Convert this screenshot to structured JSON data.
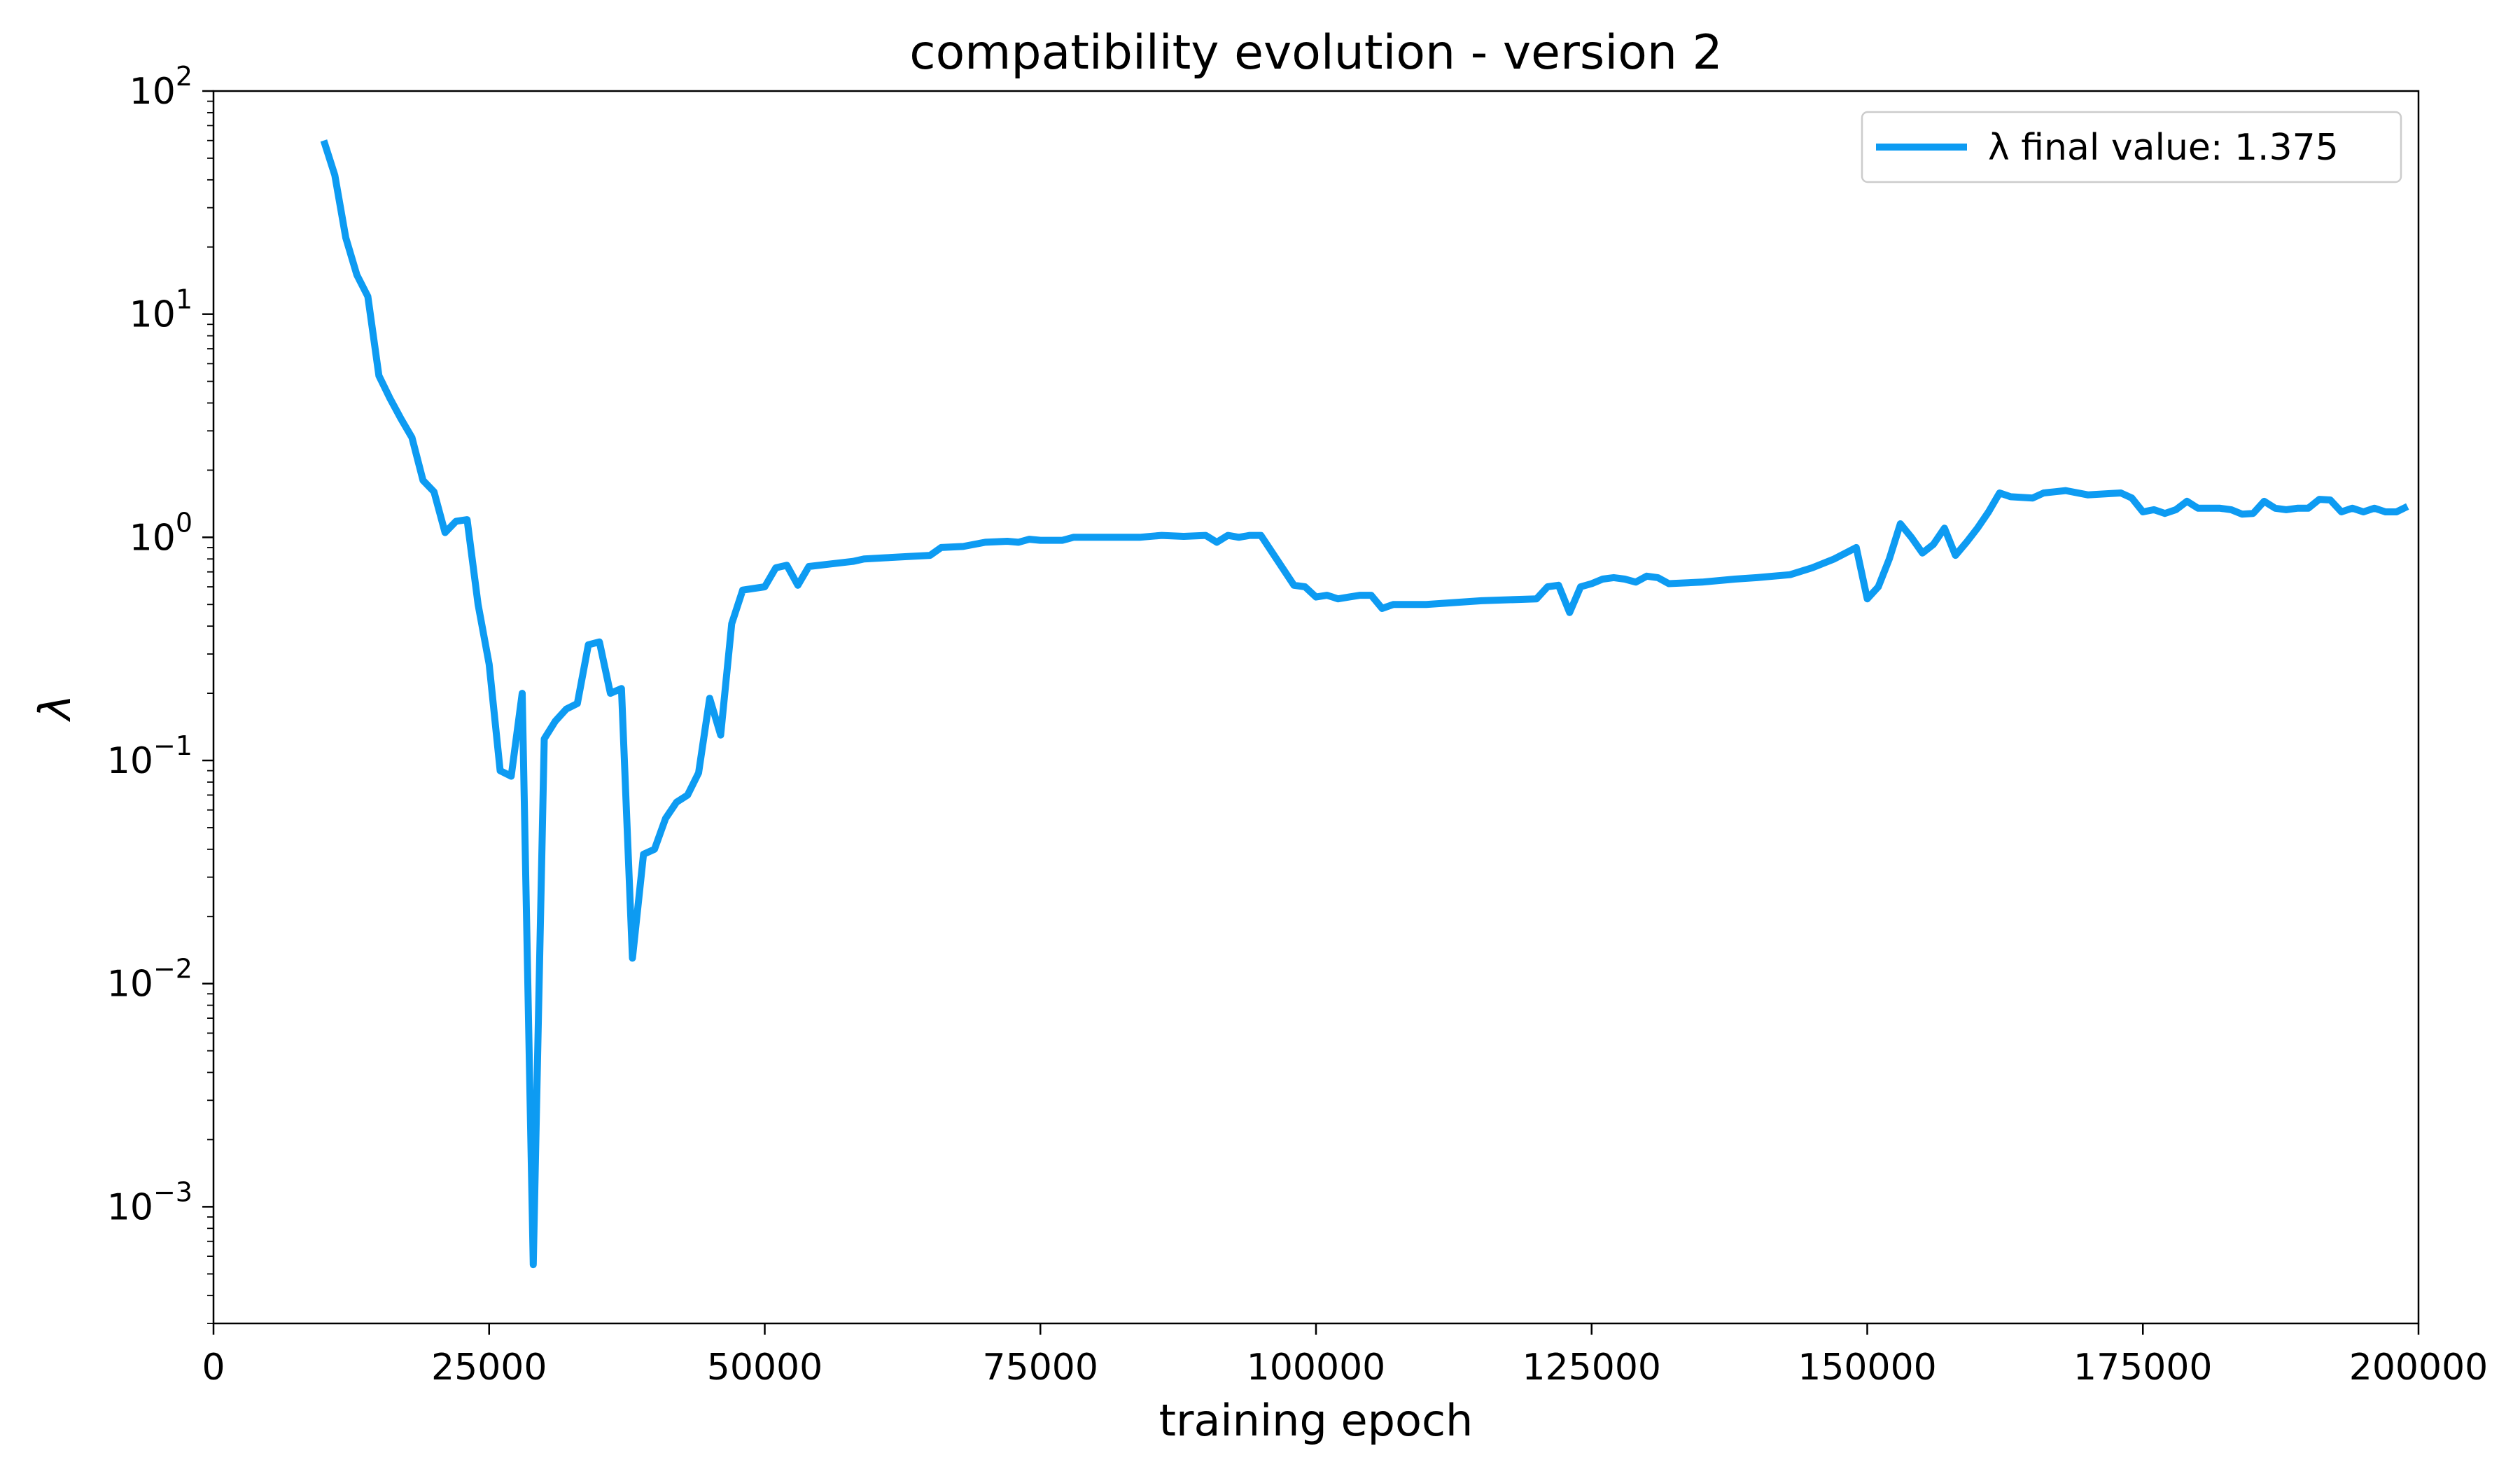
{
  "chart_data": {
    "type": "line",
    "title": "compatibility evolution - version 2",
    "xlabel": "training epoch",
    "ylabel": "λ",
    "xlim": [
      0,
      200000
    ],
    "ylim": [
      0.0003,
      100
    ],
    "yscale": "log",
    "x_ticks": [
      {
        "value": 0,
        "label": "0"
      },
      {
        "value": 25000,
        "label": "25000"
      },
      {
        "value": 50000,
        "label": "50000"
      },
      {
        "value": 75000,
        "label": "75000"
      },
      {
        "value": 100000,
        "label": "100000"
      },
      {
        "value": 125000,
        "label": "125000"
      },
      {
        "value": 150000,
        "label": "150000"
      },
      {
        "value": 175000,
        "label": "175000"
      },
      {
        "value": 200000,
        "label": "200000"
      }
    ],
    "y_ticks": [
      {
        "value": 0.001,
        "base": "10",
        "exp": "−3"
      },
      {
        "value": 0.01,
        "base": "10",
        "exp": "−2"
      },
      {
        "value": 0.1,
        "base": "10",
        "exp": "−1"
      },
      {
        "value": 1,
        "base": "10",
        "exp": "0"
      },
      {
        "value": 10,
        "base": "10",
        "exp": "1"
      },
      {
        "value": 100,
        "base": "10",
        "exp": "2"
      }
    ],
    "grid": false,
    "legend_position": "top-right",
    "series": [
      {
        "name": "λ final value: 1.375",
        "color": "#0d9bf2",
        "x": [
          10000,
          11000,
          12000,
          13000,
          14000,
          15000,
          16000,
          17000,
          18000,
          19000,
          20000,
          21000,
          22000,
          23000,
          24000,
          25000,
          26000,
          27000,
          28000,
          29000,
          30000,
          31000,
          32000,
          33000,
          34000,
          35000,
          36000,
          37000,
          38000,
          39000,
          40000,
          41000,
          42000,
          43000,
          44000,
          45000,
          46000,
          47000,
          48000,
          50000,
          51000,
          52000,
          53000,
          54000,
          56000,
          58000,
          59000,
          61000,
          63000,
          65000,
          66000,
          68000,
          70000,
          72000,
          73000,
          74000,
          75000,
          77000,
          78000,
          80000,
          82000,
          84000,
          86000,
          88000,
          90000,
          91000,
          92000,
          93000,
          94000,
          95000,
          98000,
          99000,
          100000,
          101000,
          102000,
          103000,
          104000,
          105000,
          106000,
          107000,
          110000,
          115000,
          120000,
          121000,
          122000,
          123000,
          124000,
          125000,
          126000,
          127000,
          128000,
          129000,
          130000,
          131000,
          132000,
          135000,
          138000,
          140000,
          143000,
          145000,
          147000,
          149000,
          150000,
          151000,
          152000,
          153000,
          154000,
          155000,
          156000,
          157000,
          158000,
          159000,
          160000,
          161000,
          162000,
          163000,
          165000,
          166000,
          167000,
          168000,
          170000,
          172000,
          173000,
          174000,
          175000,
          176000,
          177000,
          178000,
          179000,
          180000,
          182000,
          183000,
          184000,
          185000,
          186000,
          187000,
          188000,
          189000,
          190000,
          191000,
          192000,
          193000,
          194000,
          195000,
          196000,
          197000,
          198000,
          199000
        ],
        "y": [
          60,
          42,
          22,
          15,
          12,
          5.3,
          4.2,
          3.4,
          2.8,
          1.8,
          1.6,
          1.05,
          1.18,
          1.2,
          0.5,
          0.27,
          0.09,
          0.085,
          0.2,
          0.00055,
          0.125,
          0.15,
          0.17,
          0.18,
          0.33,
          0.34,
          0.2,
          0.21,
          0.013,
          0.038,
          0.04,
          0.055,
          0.065,
          0.07,
          0.088,
          0.19,
          0.13,
          0.41,
          0.58,
          0.6,
          0.73,
          0.75,
          0.61,
          0.74,
          0.76,
          0.78,
          0.8,
          0.81,
          0.82,
          0.83,
          0.9,
          0.91,
          0.95,
          0.96,
          0.95,
          0.98,
          0.97,
          0.97,
          1.0,
          1.0,
          1.0,
          1.0,
          1.02,
          1.01,
          1.02,
          0.95,
          1.02,
          1.0,
          1.02,
          1.02,
          0.61,
          0.6,
          0.54,
          0.55,
          0.53,
          0.54,
          0.55,
          0.55,
          0.48,
          0.5,
          0.5,
          0.52,
          0.53,
          0.6,
          0.61,
          0.46,
          0.6,
          0.62,
          0.65,
          0.66,
          0.65,
          0.63,
          0.67,
          0.66,
          0.62,
          0.63,
          0.65,
          0.66,
          0.68,
          0.73,
          0.8,
          0.9,
          0.53,
          0.6,
          0.8,
          1.15,
          1.0,
          0.85,
          0.93,
          1.1,
          0.83,
          0.95,
          1.1,
          1.3,
          1.58,
          1.52,
          1.5,
          1.58,
          1.6,
          1.62,
          1.55,
          1.57,
          1.58,
          1.5,
          1.3,
          1.33,
          1.28,
          1.33,
          1.45,
          1.35,
          1.35,
          1.33,
          1.27,
          1.28,
          1.45,
          1.35,
          1.33,
          1.35,
          1.35,
          1.48,
          1.47,
          1.3,
          1.35,
          1.3,
          1.35,
          1.3,
          1.3,
          1.375
        ]
      }
    ]
  }
}
